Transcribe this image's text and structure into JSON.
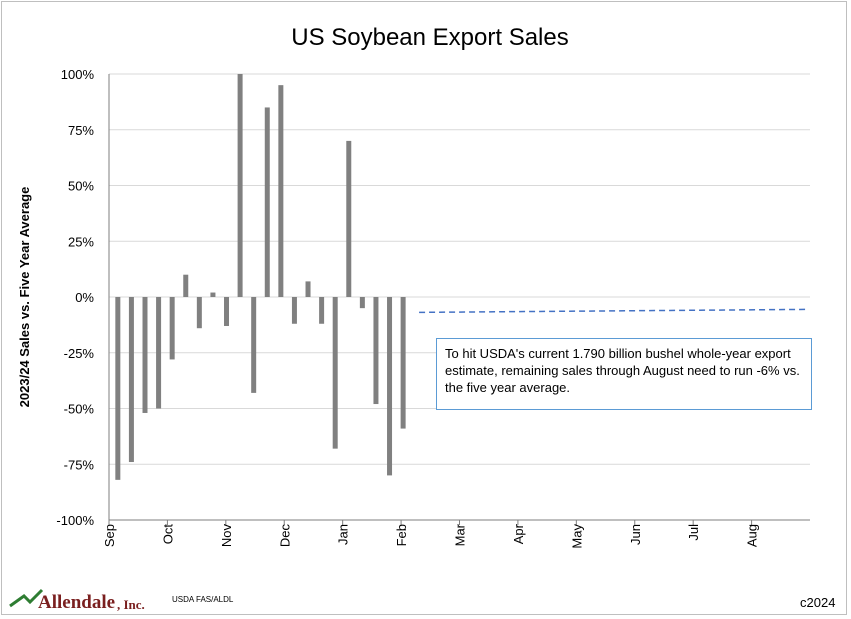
{
  "chart_data": {
    "type": "bar",
    "title": "US Soybean Export Sales",
    "ylabel": "2023/24 Sales vs. Five Year Average",
    "xlabel": "",
    "ylim": [
      -100,
      100
    ],
    "y_ticks": [
      "100%",
      "75%",
      "50%",
      "25%",
      "0%",
      "-25%",
      "-50%",
      "-75%",
      "-100%"
    ],
    "y_tick_values": [
      100,
      75,
      50,
      25,
      0,
      -25,
      -50,
      -75,
      -100
    ],
    "x_ticks": [
      "Sep",
      "Oct",
      "Nov",
      "Dec",
      "Jan",
      "Feb",
      "Mar",
      "Apr",
      "May",
      "Jun",
      "Jul",
      "Aug"
    ],
    "grid": true,
    "bar_color": "#808080",
    "series": [
      {
        "values": [
          -82,
          -74,
          -52,
          -50,
          -28,
          10,
          -14,
          2,
          -13,
          100,
          -43,
          85,
          95,
          -12,
          7,
          -12,
          -68,
          70,
          -5,
          -48,
          -80,
          -59
        ]
      }
    ],
    "reference_line": {
      "value": -6,
      "start_month": "Feb",
      "color": "#4472c4",
      "style": "dashed"
    },
    "annotation": "To hit USDA's current 1.790 billion bushel whole-year export estimate, remaining sales through August need to run -6% vs. the five year average."
  },
  "footer": {
    "logo_name": "Allendale",
    "logo_suffix": ", Inc.",
    "source": "USDA FAS/ALDL",
    "copyright": "c2024"
  },
  "colors": {
    "logo": "#7a1f1f",
    "logo_mark": "#2e7d32",
    "gridline": "#d9d9d9",
    "axis": "#7f7f7f",
    "note_border": "#5b9bd5"
  }
}
